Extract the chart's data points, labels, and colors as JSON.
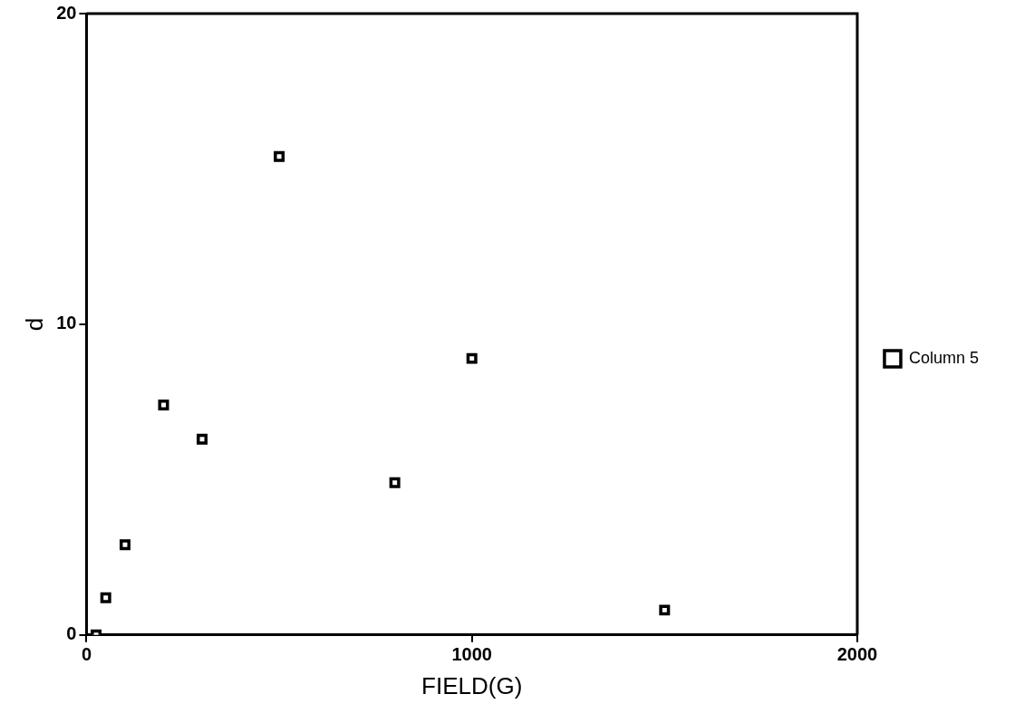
{
  "chart_data": {
    "type": "scatter",
    "xlabel": "FIELD(G)",
    "ylabel": "d",
    "x": [
      25,
      50,
      100,
      200,
      300,
      500,
      800,
      1000,
      1500
    ],
    "series": [
      {
        "name": "Column 5",
        "color": "#000000",
        "values": [
          0,
          1.2,
          2.9,
          7.4,
          6.3,
          15.4,
          4.9,
          8.9,
          0.8
        ]
      }
    ],
    "xlim": [
      0,
      2000
    ],
    "xticks": [
      0,
      1000,
      2000
    ],
    "ylim": [
      0,
      20
    ],
    "yticks": [
      0,
      10,
      20
    ],
    "grid": false,
    "legend": "right",
    "marker": "square"
  }
}
